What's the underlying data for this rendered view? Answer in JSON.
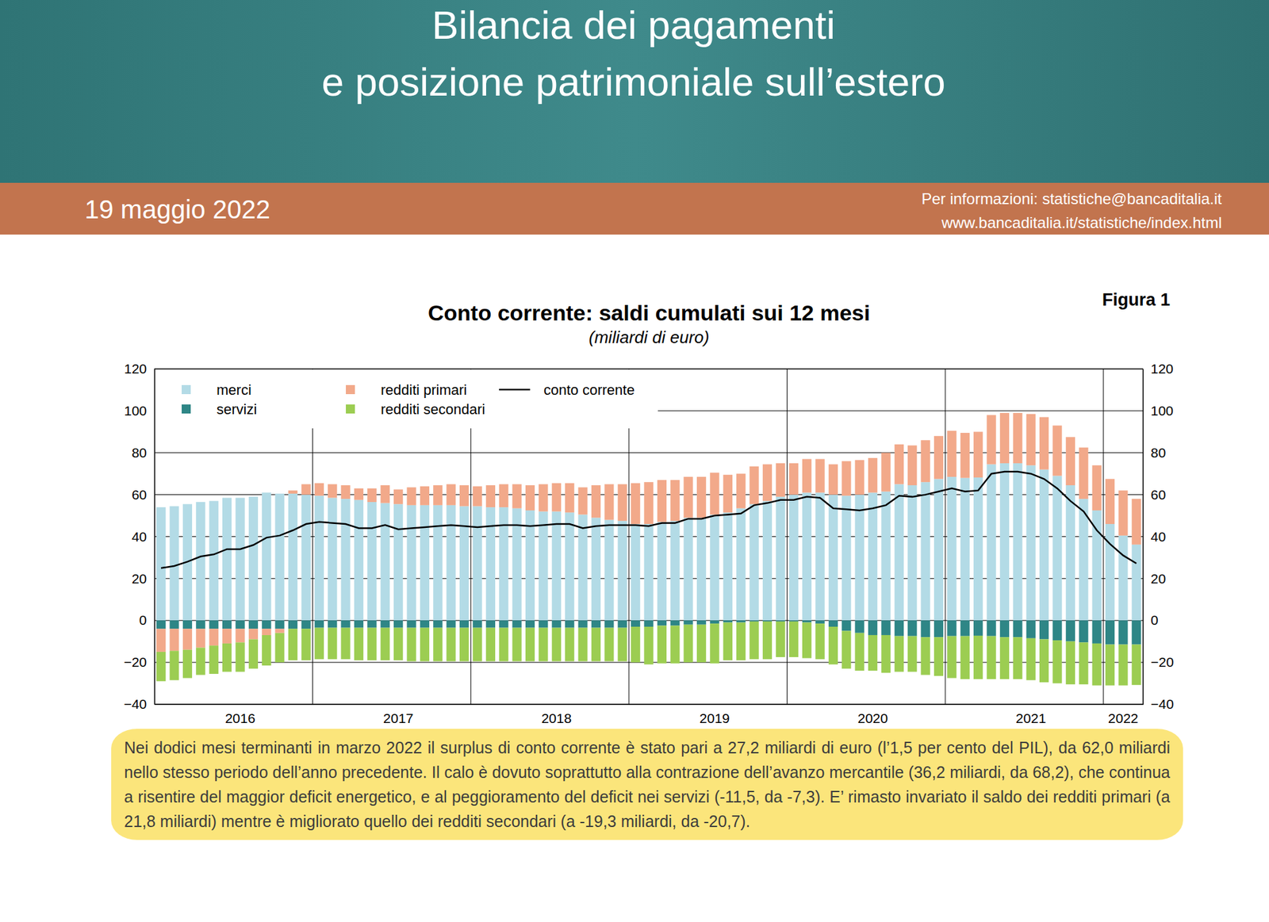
{
  "header": {
    "title": [
      "Bilancia dei pagamenti",
      "e posizione patrimoniale sull’estero"
    ],
    "date": "19 maggio 2022",
    "contact": [
      "Per informazioni: statistiche@bancaditalia.it",
      "www.bancaditalia.it/statistiche/index.html"
    ]
  },
  "figure_label": "Figura 1",
  "chart_data": {
    "type": "bar",
    "title": "Conto corrente: saldi cumulati sui 12 mesi",
    "subtitle": "(miliardi di euro)",
    "stacked": true,
    "grid": true,
    "legend": "top-left",
    "ylim": [
      -40,
      120
    ],
    "yticks": [
      {
        "value": -40,
        "label": "−40"
      },
      {
        "value": -20,
        "label": "−20"
      },
      0,
      20,
      40,
      60,
      80,
      100,
      120
    ],
    "categories": [
      null,
      null,
      null,
      null,
      null,
      null,
      "2016",
      null,
      null,
      null,
      null,
      null,
      null,
      null,
      null,
      null,
      null,
      null,
      "2017",
      null,
      null,
      null,
      null,
      null,
      null,
      null,
      null,
      null,
      null,
      null,
      "2018",
      null,
      null,
      null,
      null,
      null,
      null,
      null,
      null,
      null,
      null,
      null,
      "2019",
      null,
      null,
      null,
      null,
      null,
      null,
      null,
      null,
      null,
      null,
      null,
      "2020",
      null,
      null,
      null,
      null,
      null,
      null,
      null,
      null,
      null,
      null,
      null,
      "2021",
      null,
      null,
      null,
      null,
      null,
      null,
      "2022",
      null
    ],
    "series": [
      {
        "name": "merci",
        "type": "bar",
        "color": "#b3dbe6",
        "values": [
          54,
          54.5,
          55.5,
          56.5,
          57,
          58.5,
          58.5,
          59,
          61,
          60.5,
          60.5,
          60,
          59.5,
          58.5,
          58,
          57.5,
          56.5,
          56,
          55.5,
          55,
          55,
          55,
          55,
          54.5,
          54.5,
          54,
          54,
          53.5,
          52.5,
          52,
          52,
          51.5,
          50.5,
          49,
          48,
          47.5,
          46,
          46,
          47,
          47.5,
          49,
          49,
          50.5,
          51.5,
          53.5,
          55.5,
          57,
          59,
          60,
          61,
          61,
          60,
          59.5,
          60,
          61,
          61.5,
          65,
          64.5,
          66,
          67.5,
          68.5,
          68,
          68.2,
          74.5,
          75,
          75,
          74,
          72,
          69,
          64.5,
          58,
          52.5,
          46,
          40.5,
          36.2
        ]
      },
      {
        "name": "servizi",
        "type": "bar",
        "color": "#2e8686",
        "values": [
          -4,
          -4,
          -4,
          -4,
          -4,
          -4,
          -4,
          -4,
          -4,
          -4,
          -4,
          -4,
          -3.5,
          -3.5,
          -3.5,
          -3.5,
          -3.5,
          -3.5,
          -3.5,
          -3.5,
          -3.5,
          -3.5,
          -3.5,
          -3.5,
          -3.5,
          -3.5,
          -3.5,
          -3.5,
          -3.5,
          -3.5,
          -3.5,
          -3.5,
          -3.5,
          -3.5,
          -3.5,
          -3.5,
          -3,
          -3,
          -2.5,
          -2.5,
          -2,
          -2,
          -1.5,
          -1,
          -1,
          -0.5,
          -0.5,
          -0.5,
          -0.5,
          -1,
          -1.5,
          -3,
          -5,
          -6,
          -7,
          -7,
          -7.5,
          -7.5,
          -8,
          -8,
          -7.5,
          -7.5,
          -7.3,
          -7.5,
          -8,
          -8,
          -8.5,
          -9,
          -9.5,
          -10,
          -10.5,
          -11,
          -11.5,
          -11.5,
          -11.5
        ]
      },
      {
        "name": "redditi primari",
        "type": "bar",
        "color": "#f2a98a",
        "values": [
          -11,
          -10.5,
          -10,
          -9,
          -8,
          -7,
          -6.5,
          -5,
          -3,
          -2,
          1.5,
          5,
          6,
          6.5,
          6.5,
          5.5,
          6.5,
          8.5,
          7,
          8.5,
          9,
          9.5,
          10,
          10,
          9.5,
          10.5,
          11,
          11.5,
          12,
          13,
          13.5,
          14,
          13,
          15.5,
          17,
          17.5,
          19.5,
          20,
          20,
          19.5,
          19.5,
          19.5,
          20,
          18,
          16.5,
          18,
          17.5,
          16,
          15,
          16,
          16,
          14.5,
          16.5,
          16.5,
          16.5,
          18.5,
          19,
          19,
          20,
          20.5,
          22,
          21.5,
          21.8,
          23.5,
          24,
          24,
          24.5,
          25,
          24,
          23,
          24.5,
          21.5,
          21.5,
          21.5,
          21.8
        ]
      },
      {
        "name": "redditi secondari",
        "type": "bar",
        "color": "#9ccd52",
        "values": [
          -14,
          -14,
          -13.5,
          -13,
          -13.5,
          -13.5,
          -14,
          -14,
          -14.5,
          -14,
          -15,
          -15,
          -15,
          -15,
          -15,
          -15.5,
          -15.5,
          -15.5,
          -15.5,
          -16,
          -16,
          -16,
          -16,
          -16,
          -16,
          -16,
          -16,
          -16,
          -16,
          -16,
          -16,
          -16,
          -16,
          -16,
          -16,
          -16,
          -17,
          -18,
          -18,
          -18,
          -18,
          -18,
          -19,
          -18,
          -18,
          -18,
          -18,
          -17,
          -17,
          -17,
          -17,
          -18,
          -18,
          -18,
          -17,
          -18,
          -17,
          -17,
          -18,
          -18.5,
          -20,
          -20.5,
          -20.7,
          -20.5,
          -20,
          -20,
          -20,
          -20.5,
          -20.5,
          -20.5,
          -20,
          -20,
          -19.5,
          -19.5,
          -19.3
        ]
      },
      {
        "name": "conto corrente",
        "type": "line",
        "color": "#000000",
        "values": [
          25,
          26,
          28,
          30.5,
          31.5,
          34,
          34,
          36,
          39.5,
          40.5,
          43,
          46,
          47,
          46.5,
          46,
          44,
          44,
          45.5,
          43.5,
          44,
          44.5,
          45,
          45.5,
          45,
          44.5,
          45,
          45.5,
          45.5,
          45,
          45.5,
          46,
          46,
          44,
          45,
          45.5,
          45.5,
          45.5,
          45,
          46.5,
          46.5,
          48.5,
          48.5,
          50,
          50.5,
          51,
          55,
          56,
          57.5,
          57.5,
          59,
          58.5,
          53.5,
          53,
          52.5,
          53.5,
          55,
          59.5,
          59,
          60,
          61.5,
          63,
          61.5,
          62,
          70,
          71,
          71,
          70,
          67.5,
          63,
          57,
          52,
          43,
          36.5,
          31,
          27.2
        ]
      }
    ]
  },
  "text": "Nei dodici mesi terminanti in marzo 2022 il surplus di conto corrente è stato pari a 27,2 miliardi di euro (l’1,5 per cento del PIL), da 62,0 miliardi nello stesso periodo dell’anno precedente.  Il calo è dovuto soprattutto alla contrazione dell’avanzo mercantile (36,2 miliardi, da 68,2), che continua a risentire del maggior deficit energetico, e al peggioramento del deficit nei servizi (-11,5, da -7,3).  E’ rimasto invariato il saldo dei redditi primari (a 21,8 miliardi) mentre è migliorato quello dei redditi secondari (a -19,3 miliardi, da -20,7)."
}
